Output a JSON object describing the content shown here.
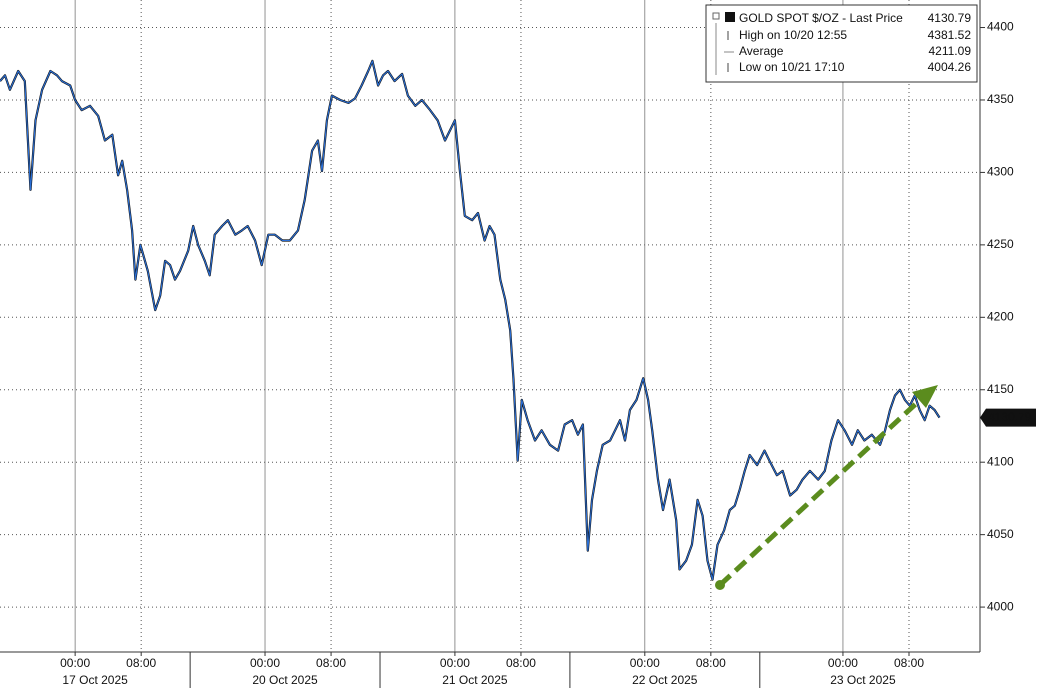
{
  "chart_data": {
    "type": "line",
    "x": [
      -9.1,
      -8.5,
      -7.9,
      -6.9,
      -6.1,
      -5.4,
      -4.8,
      -4.0,
      -3.0,
      -2.2,
      -1.6,
      -0.6,
      0,
      0.8,
      1.8,
      2.8,
      3.6,
      4.5,
      5.2,
      5.7,
      6.3,
      6.9,
      7.3,
      7.9,
      8.8,
      9.7,
      10.3,
      10.9,
      11.5,
      12.1,
      12.7,
      13.7,
      14.3,
      14.9,
      15.7,
      16.3,
      16.9,
      17.8,
      18.5,
      19.4,
      20.2,
      20.9,
      21.8,
      22.6,
      23.4,
      24.2,
      25.1,
      26.0,
      27.0,
      27.8,
      28.7,
      29.4,
      29.9,
      30.5,
      31.1,
      32.1,
      33.1,
      33.9,
      34.7,
      35.5,
      36.0,
      36.7,
      37.3,
      37.9,
      38.7,
      39.6,
      40.3,
      41.2,
      42.0,
      43.0,
      43.9,
      44.8,
      45.4,
      46.0,
      46.6,
      47.2,
      48.1,
      48.8,
      49.6,
      50.2,
      50.8,
      51.5,
      52.1,
      52.7,
      53.1,
      53.6,
      54.1,
      54.8,
      55.7,
      56.5,
      57.5,
      58.5,
      59.3,
      60.2,
      60.9,
      61.5,
      62.1,
      62.6,
      63.2,
      63.9,
      64.8,
      65.4,
      66.0,
      66.6,
      67.2,
      68.0,
      68.8,
      69.4,
      69.9,
      70.6,
      71.2,
      72.0,
      72.8,
      73.2,
      74.0,
      74.7,
      75.4,
      76.0,
      76.6,
      77.2,
      77.8,
      78.6,
      79.3,
      79.9,
      80.5,
      81.1,
      81.7,
      82.6,
      83.5,
      84.1,
      85.0,
      85.7,
      86.6,
      87.4,
      88.1,
      89.0,
      90.0,
      90.8,
      91.6,
      92.4,
      93.2,
      94.1,
      94.8,
      95.6,
      96.5,
      97.5,
      98.1,
      98.7,
      99.3,
      99.9,
      100.5,
      101.1,
      101.7,
      102.3,
      102.9,
      103.5,
      104.1,
      104.7
    ],
    "series": [
      {
        "name": "GOLD SPOT $/OZ - Last Price",
        "color": "#2a6fd6",
        "values": [
          4363,
          4367,
          4357,
          4370,
          4363,
          4288,
          4336,
          4357,
          4370,
          4367,
          4363,
          4360,
          4350,
          4343,
          4346,
          4339,
          4322,
          4326,
          4298,
          4308,
          4288,
          4260,
          4226,
          4250,
          4232,
          4205,
          4215,
          4239,
          4236,
          4226,
          4232,
          4246,
          4263,
          4250,
          4239,
          4229,
          4257,
          4263,
          4267,
          4257,
          4260,
          4263,
          4253,
          4236,
          4257,
          4257,
          4253,
          4253,
          4260,
          4281,
          4315,
          4322,
          4301,
          4336,
          4353,
          4350,
          4348,
          4351,
          4360,
          4370,
          4377,
          4360,
          4367,
          4370,
          4363,
          4368,
          4353,
          4346,
          4350,
          4343,
          4336,
          4322,
          4329,
          4336,
          4301,
          4270,
          4267,
          4272,
          4253,
          4263,
          4257,
          4226,
          4212,
          4191,
          4157,
          4101,
          4143,
          4129,
          4115,
          4122,
          4112,
          4108,
          4126,
          4129,
          4119,
          4126,
          4039,
          4074,
          4094,
          4112,
          4115,
          4122,
          4129,
          4115,
          4136,
          4143,
          4158,
          4143,
          4122,
          4088,
          4067,
          4088,
          4060,
          4026,
          4032,
          4043,
          4074,
          4063,
          4032,
          4019,
          4043,
          4053,
          4067,
          4070,
          4081,
          4094,
          4105,
          4098,
          4108,
          4101,
          4091,
          4094,
          4077,
          4081,
          4088,
          4094,
          4088,
          4094,
          4115,
          4129,
          4122,
          4112,
          4122,
          4115,
          4119,
          4112,
          4122,
          4136,
          4146,
          4150,
          4143,
          4139,
          4146,
          4136,
          4129,
          4139,
          4136,
          4130.79
        ]
      }
    ],
    "last_price": 4130.79,
    "stats": [
      {
        "label": "High on 10/20 12:55",
        "value": 4381.52
      },
      {
        "label": "Average",
        "value": 4211.09
      },
      {
        "label": "Low on 10/21 17:10",
        "value": 4004.26
      }
    ],
    "xlim": [
      -9.1,
      109.6
    ],
    "xticks": [
      {
        "value": 0,
        "label": "00:00"
      },
      {
        "value": 8,
        "label": "08:00"
      },
      {
        "value": 23,
        "label": "00:00"
      },
      {
        "value": 31,
        "label": "08:00"
      },
      {
        "value": 46,
        "label": "00:00"
      },
      {
        "value": 54,
        "label": "08:00"
      },
      {
        "value": 69,
        "label": "00:00"
      },
      {
        "value": 77,
        "label": "08:00"
      },
      {
        "value": 93,
        "label": "00:00"
      },
      {
        "value": 101,
        "label": "08:00"
      }
    ],
    "x_dates": [
      "17 Oct 2025",
      "20 Oct 2025",
      "21 Oct 2025",
      "22 Oct 2025",
      "23 Oct 2025"
    ],
    "ylim": [
      3969,
      4419
    ],
    "yticks": [
      4000,
      4050,
      4100,
      4150,
      4200,
      4250,
      4300,
      4350,
      4400
    ],
    "grid": true
  }
}
